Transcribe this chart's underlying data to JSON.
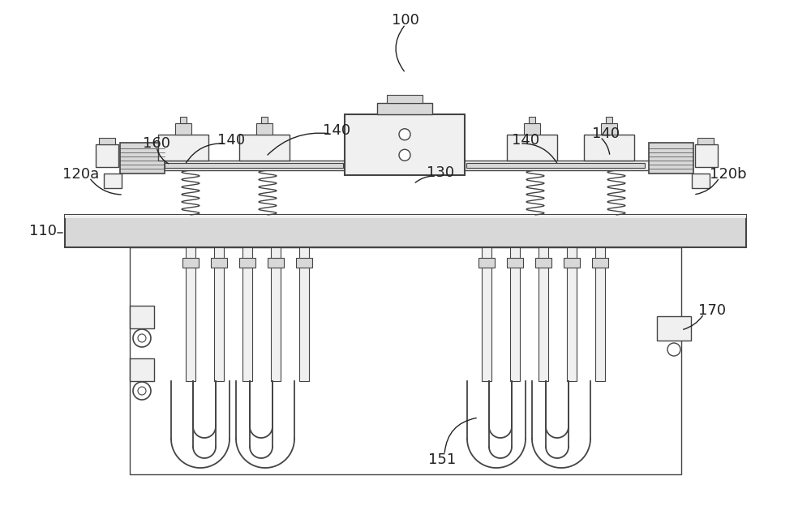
{
  "bg": "#ffffff",
  "lc": "#444444",
  "fc_light": "#f0f0f0",
  "fc_med": "#d8d8d8",
  "fc_dark": "#b0b0b0",
  "fc_plate": "#e0e0e0",
  "label_fs": 13,
  "label_color": "#222222"
}
